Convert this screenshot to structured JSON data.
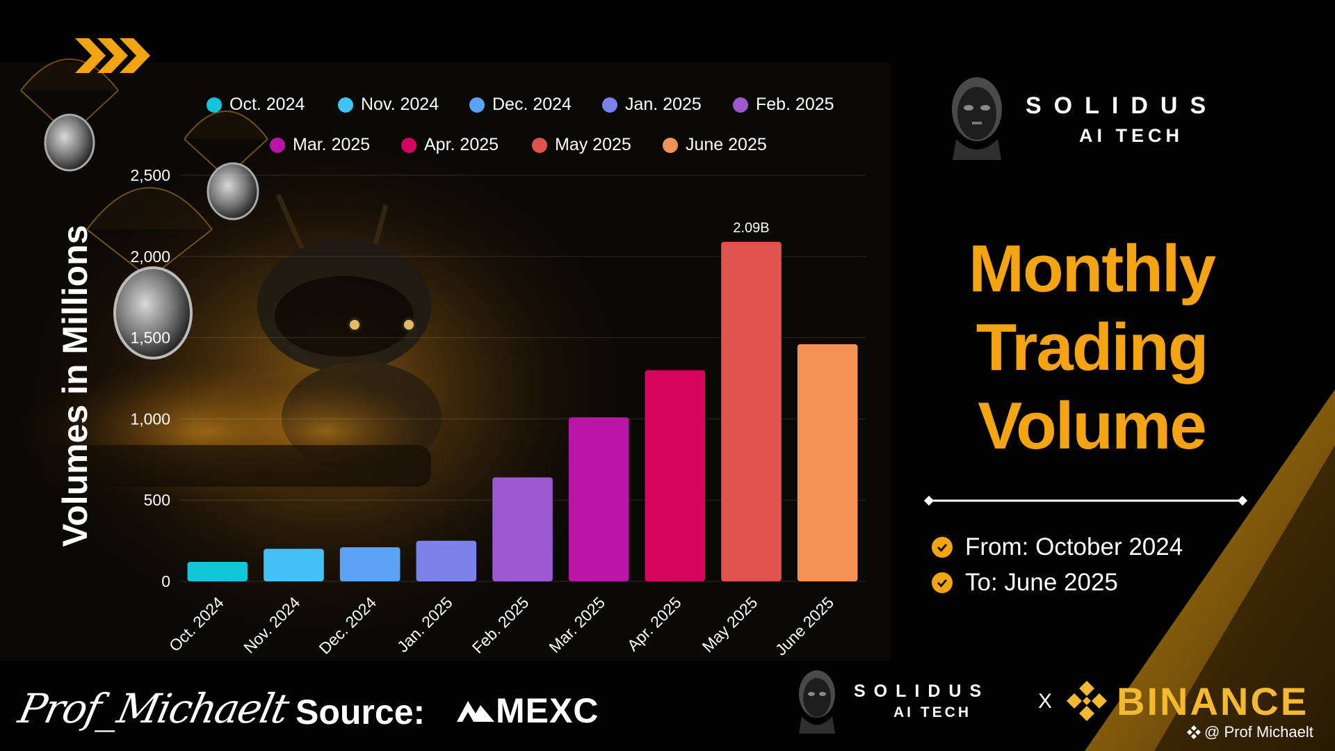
{
  "header": {
    "brand_name": "SOLIDUS",
    "brand_sub": "AI TECH"
  },
  "title": {
    "line1": "Monthly",
    "line2": "Trading",
    "line3": "Volume"
  },
  "range": {
    "from": "From: October 2024",
    "to": "To: June 2025"
  },
  "footer": {
    "signature": "Prof_Michaelt",
    "source_label": "Source:",
    "source_name": "MEXC",
    "partner_left_name": "SOLIDUS",
    "partner_left_sub": "AI TECH",
    "separator": "X",
    "partner_right": "BINANCE",
    "credit": "@ Prof Michaelt"
  },
  "colors": {
    "accent": "#f5a411",
    "binance": "#f3ba2f"
  },
  "icons": [
    "chevrons-icon",
    "check-circle-icon",
    "mexc-logo-icon",
    "binance-logo-icon",
    "robot-head-logo"
  ],
  "chart_data": {
    "type": "bar",
    "ylabel": "Volumes in Millions",
    "ylim": [
      0,
      2500
    ],
    "yticks": [
      0,
      500,
      1000,
      1500,
      2000,
      2500
    ],
    "ytick_labels": [
      "0",
      "500",
      "1,000",
      "1,500",
      "2,000",
      "2,500"
    ],
    "grid": true,
    "legend_position": "top",
    "categories": [
      "Oct. 2024",
      "Nov. 2024",
      "Dec. 2024",
      "Jan. 2025",
      "Feb. 2025",
      "Mar. 2025",
      "Apr. 2025",
      "May 2025",
      "June 2025"
    ],
    "values": [
      120,
      200,
      210,
      250,
      640,
      1010,
      1300,
      2090,
      1460
    ],
    "bar_colors": [
      "#13c5d9",
      "#43c2f7",
      "#5aa3f6",
      "#7b83ea",
      "#9b58cf",
      "#bb15a7",
      "#d4045f",
      "#e0524c",
      "#f49157"
    ],
    "data_labels": [
      {
        "category": "May 2025",
        "text": "2.09B"
      }
    ]
  }
}
